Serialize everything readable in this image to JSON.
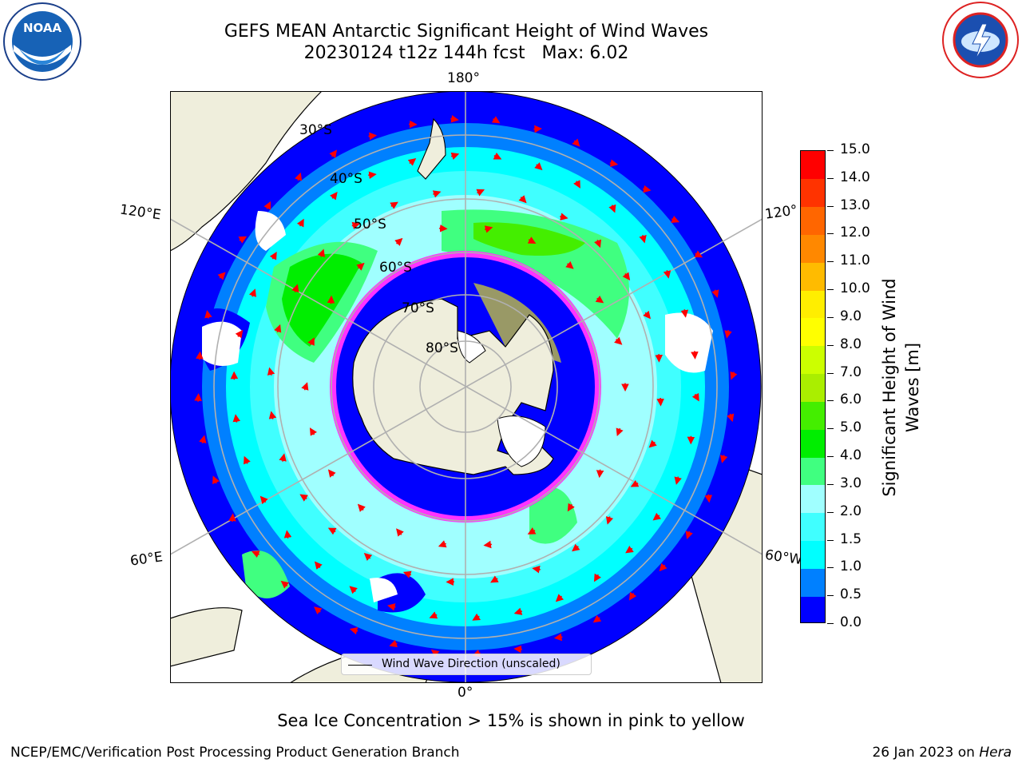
{
  "header": {
    "title_line1": "GEFS MEAN Antarctic Significant Height of Wind Waves",
    "title_line2": "20230124 t12z 144h fcst   Max: 6.02"
  },
  "logos": {
    "left": {
      "icon": "noaa-logo",
      "text": "NOAA"
    },
    "right": {
      "icon": "nws-logo"
    }
  },
  "map": {
    "projection": "south-polar-stereographic",
    "lon_labels": {
      "top": "180°",
      "bottom": "0°",
      "left_upper": "120°E",
      "left_lower": "60°E",
      "right_upper": "120°",
      "right_lower": "60°W"
    },
    "lat_labels": [
      "30°S",
      "40°S",
      "50°S",
      "60°S",
      "70°S",
      "80°S"
    ],
    "legend_label": "Wind Wave Direction (unscaled)",
    "colors": {
      "land": "#efeedc",
      "ocean_low": "#0000ff",
      "ocean_mid": "#00ffff",
      "ocean_green": "#33ff33",
      "ice": "#ff33ff",
      "arrow": "#ff0000"
    }
  },
  "colorbar": {
    "title": "Significant Height of Wind Waves [m]",
    "ticks": [
      "0.0",
      "0.5",
      "1.0",
      "1.5",
      "2.0",
      "3.0",
      "4.0",
      "5.0",
      "6.0",
      "7.0",
      "8.0",
      "9.0",
      "10.0",
      "11.0",
      "12.0",
      "13.0",
      "14.0",
      "15.0"
    ],
    "colors": [
      "#0000ff",
      "#0080ff",
      "#00ffff",
      "#40ffff",
      "#a0ffff",
      "#40ff80",
      "#00ee00",
      "#44ee00",
      "#aaee00",
      "#ccff00",
      "#ffff00",
      "#ffee00",
      "#ffbb00",
      "#ff8800",
      "#ff6600",
      "#ff3300",
      "#ff0000"
    ]
  },
  "footer": {
    "note": "Sea Ice Concentration > 15% is shown in pink to yellow",
    "left": "NCEP/EMC/Verification Post Processing Product Generation Branch",
    "right_prefix": "26 Jan 2023 on ",
    "right_italic": "Hera"
  }
}
